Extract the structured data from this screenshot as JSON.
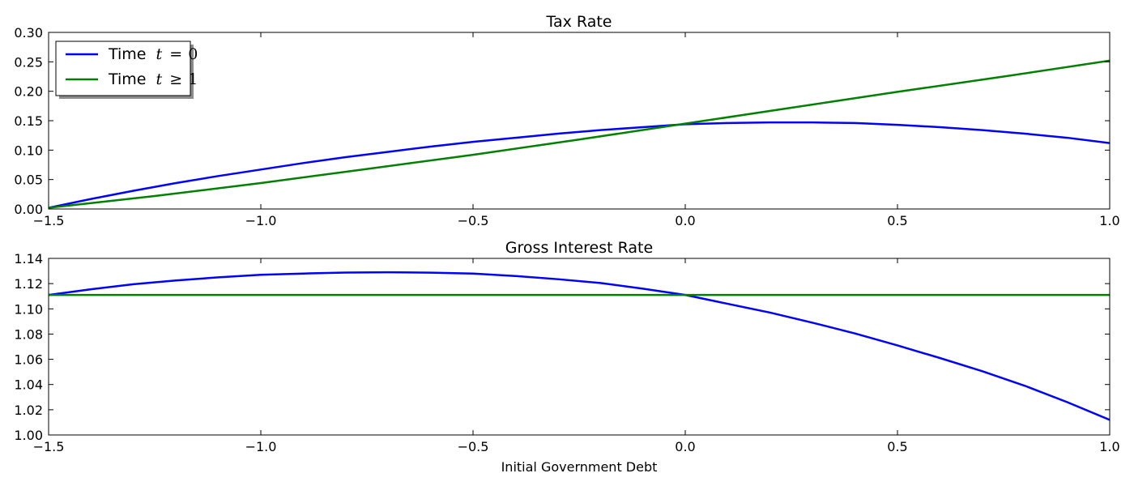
{
  "chart_data": [
    {
      "type": "line",
      "title": "Tax Rate",
      "xlabel": "",
      "ylabel": "",
      "xlim": [
        -1.5,
        1.0
      ],
      "ylim": [
        0.0,
        0.3
      ],
      "xticks": [
        -1.5,
        -1.0,
        -0.5,
        0.0,
        0.5,
        1.0
      ],
      "xtick_labels": [
        "−1.5",
        "−1.0",
        "−0.5",
        "0.0",
        "0.5",
        "1.0"
      ],
      "yticks": [
        0.0,
        0.05,
        0.1,
        0.15,
        0.2,
        0.25,
        0.3
      ],
      "ytick_labels": [
        "0.00",
        "0.05",
        "0.10",
        "0.15",
        "0.20",
        "0.25",
        "0.30"
      ],
      "grid": false,
      "legend": "upper-left",
      "series": [
        {
          "name": "Time t = 0",
          "legend_prefix": "Time",
          "legend_var": "t",
          "legend_op": "=",
          "legend_val": "0",
          "color": "#0000ff",
          "x": [
            -1.5,
            -1.4,
            -1.3,
            -1.2,
            -1.1,
            -1.0,
            -0.9,
            -0.8,
            -0.7,
            -0.6,
            -0.5,
            -0.4,
            -0.3,
            -0.2,
            -0.1,
            0.0,
            0.1,
            0.2,
            0.3,
            0.4,
            0.5,
            0.6,
            0.7,
            0.8,
            0.9,
            1.0
          ],
          "y": [
            0.002,
            0.017,
            0.031,
            0.044,
            0.056,
            0.067,
            0.078,
            0.088,
            0.097,
            0.106,
            0.114,
            0.121,
            0.128,
            0.134,
            0.139,
            0.144,
            0.146,
            0.147,
            0.147,
            0.146,
            0.143,
            0.139,
            0.134,
            0.128,
            0.121,
            0.112
          ]
        },
        {
          "name": "Time t ≥ 1",
          "legend_prefix": "Time",
          "legend_var": "t",
          "legend_op": "≥",
          "legend_val": "1",
          "color": "#008000",
          "x": [
            -1.5,
            -1.25,
            -1.0,
            -0.75,
            -0.5,
            -0.25,
            0.0,
            0.25,
            0.5,
            0.75,
            1.0
          ],
          "y": [
            0.002,
            0.022,
            0.044,
            0.068,
            0.092,
            0.118,
            0.145,
            0.172,
            0.199,
            0.225,
            0.252
          ]
        }
      ]
    },
    {
      "type": "line",
      "title": "Gross Interest Rate",
      "xlabel": "Initial Government Debt",
      "ylabel": "",
      "xlim": [
        -1.5,
        1.0
      ],
      "ylim": [
        1.0,
        1.14
      ],
      "xticks": [
        -1.5,
        -1.0,
        -0.5,
        0.0,
        0.5,
        1.0
      ],
      "xtick_labels": [
        "−1.5",
        "−1.0",
        "−0.5",
        "0.0",
        "0.5",
        "1.0"
      ],
      "yticks": [
        1.0,
        1.02,
        1.04,
        1.06,
        1.08,
        1.1,
        1.12,
        1.14
      ],
      "ytick_labels": [
        "1.00",
        "1.02",
        "1.04",
        "1.06",
        "1.08",
        "1.10",
        "1.12",
        "1.14"
      ],
      "grid": false,
      "series": [
        {
          "color": "#0000ff",
          "x": [
            -1.5,
            -1.4,
            -1.3,
            -1.2,
            -1.1,
            -1.0,
            -0.9,
            -0.8,
            -0.7,
            -0.6,
            -0.5,
            -0.4,
            -0.3,
            -0.2,
            -0.1,
            0.0,
            0.1,
            0.2,
            0.3,
            0.4,
            0.5,
            0.6,
            0.7,
            0.8,
            0.9,
            1.0
          ],
          "y": [
            1.111,
            1.1155,
            1.1195,
            1.1225,
            1.125,
            1.127,
            1.128,
            1.1288,
            1.129,
            1.1287,
            1.128,
            1.126,
            1.1235,
            1.1205,
            1.116,
            1.111,
            1.104,
            1.097,
            1.089,
            1.0805,
            1.071,
            1.061,
            1.0505,
            1.039,
            1.026,
            1.012
          ]
        },
        {
          "color": "#008000",
          "x": [
            -1.5,
            1.0
          ],
          "y": [
            1.111,
            1.111
          ]
        }
      ]
    }
  ]
}
